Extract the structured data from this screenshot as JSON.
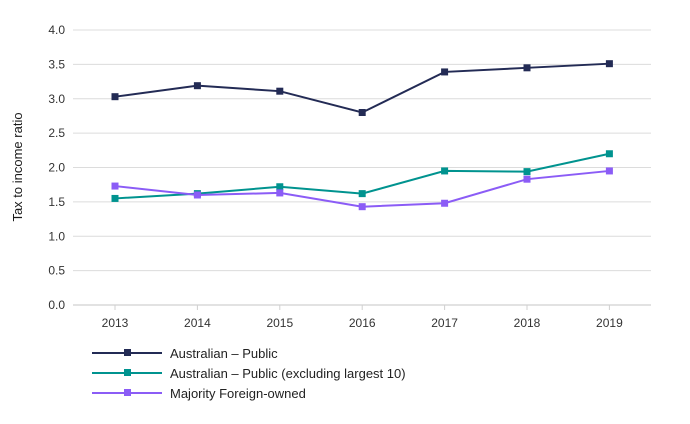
{
  "chart_data": {
    "type": "line",
    "title": "",
    "xlabel": "",
    "ylabel": "Tax to income ratio",
    "x": [
      "2013",
      "2014",
      "2015",
      "2016",
      "2017",
      "2018",
      "2019"
    ],
    "ylim": [
      0,
      4
    ],
    "yticks": [
      "0.0",
      "0.5",
      "1.0",
      "1.5",
      "2.0",
      "2.5",
      "3.0",
      "3.5",
      "4.0"
    ],
    "grid": "horizontal",
    "legend_position": "bottom-left",
    "series": [
      {
        "name": "Australian – Public",
        "color": "#232b55",
        "values": [
          3.03,
          3.19,
          3.11,
          2.8,
          3.39,
          3.45,
          3.51
        ]
      },
      {
        "name": "Australian – Public (excluding largest 10)",
        "color": "#00938f",
        "values": [
          1.55,
          1.62,
          1.72,
          1.62,
          1.95,
          1.94,
          2.2
        ]
      },
      {
        "name": "Majority Foreign-owned",
        "color": "#8b5cf6",
        "values": [
          1.73,
          1.6,
          1.63,
          1.43,
          1.48,
          1.83,
          1.95
        ]
      }
    ]
  }
}
